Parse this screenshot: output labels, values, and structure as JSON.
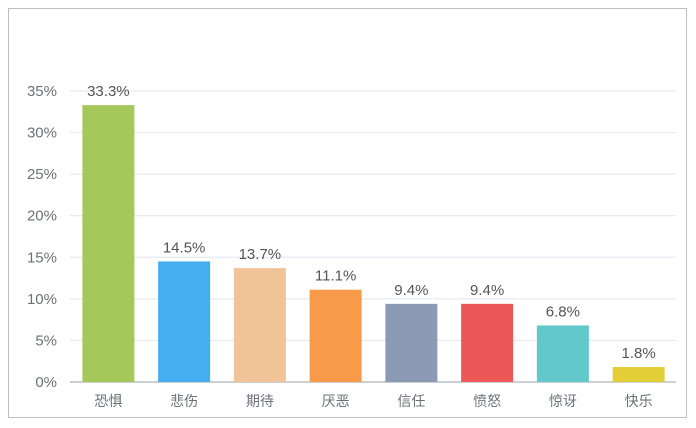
{
  "chart_data": {
    "type": "bar",
    "title": "",
    "xlabel": "",
    "ylabel": "",
    "categories": [
      "恐惧",
      "悲伤",
      "期待",
      "厌恶",
      "信任",
      "愤怒",
      "惊讶",
      "快乐"
    ],
    "values": [
      33.3,
      14.5,
      13.7,
      11.1,
      9.4,
      9.4,
      6.8,
      1.8
    ],
    "data_labels": [
      "33.3%",
      "14.5%",
      "13.7%",
      "11.1%",
      "9.4%",
      "9.4%",
      "6.8%",
      "1.8%"
    ],
    "colors": [
      "#a6c75a",
      "#45aef0",
      "#f0c498",
      "#f79a4a",
      "#8c9ab5",
      "#ec5858",
      "#62c8cc",
      "#e3ce38"
    ],
    "ylim": [
      0,
      35
    ],
    "yticks": [
      0,
      5,
      10,
      15,
      20,
      25,
      30,
      35
    ],
    "ytick_labels": [
      "0%",
      "5%",
      "10%",
      "15%",
      "20%",
      "25%",
      "30%",
      "35%"
    ],
    "grid": true,
    "legend": "none"
  }
}
